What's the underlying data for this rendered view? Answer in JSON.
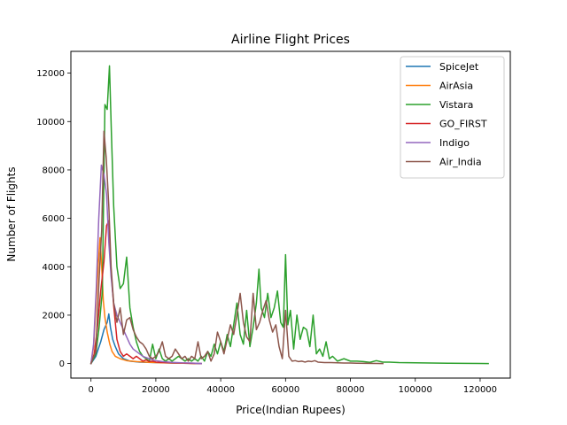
{
  "chart_data": {
    "type": "line",
    "title": "Airline Flight Prices",
    "xlabel": "Price(Indian Rupees)",
    "ylabel": "Number of Flights",
    "xlim": [
      -6200,
      129300
    ],
    "ylim": [
      -600,
      12900
    ],
    "xticks": [
      0,
      20000,
      40000,
      60000,
      80000,
      100000,
      120000
    ],
    "yticks": [
      0,
      2000,
      4000,
      6000,
      8000,
      10000,
      12000
    ],
    "legend_position": "upper right",
    "grid": false,
    "series": [
      {
        "name": "SpiceJet",
        "color": "#1f77b4",
        "points": [
          [
            0,
            0
          ],
          [
            1500,
            300
          ],
          [
            3000,
            900
          ],
          [
            4000,
            1400
          ],
          [
            5000,
            1700
          ],
          [
            5500,
            2050
          ],
          [
            6000,
            1500
          ],
          [
            6700,
            1000
          ],
          [
            7500,
            700
          ],
          [
            8500,
            400
          ],
          [
            10000,
            200
          ],
          [
            12000,
            100
          ],
          [
            15000,
            60
          ],
          [
            20000,
            40
          ],
          [
            25000,
            20
          ],
          [
            30000,
            10
          ],
          [
            34000,
            0
          ]
        ]
      },
      {
        "name": "AirAsia",
        "color": "#ff7f0e",
        "points": [
          [
            0,
            0
          ],
          [
            800,
            700
          ],
          [
            1600,
            2500
          ],
          [
            2300,
            4200
          ],
          [
            2800,
            5200
          ],
          [
            3300,
            4000
          ],
          [
            3800,
            2600
          ],
          [
            4300,
            1900
          ],
          [
            5000,
            1300
          ],
          [
            5800,
            800
          ],
          [
            6500,
            500
          ],
          [
            7500,
            300
          ],
          [
            9000,
            200
          ],
          [
            11000,
            120
          ],
          [
            14000,
            80
          ],
          [
            18000,
            50
          ],
          [
            22000,
            30
          ],
          [
            26000,
            20
          ],
          [
            30000,
            10
          ],
          [
            32000,
            0
          ]
        ]
      },
      {
        "name": "Vistara",
        "color": "#2ca02c",
        "points": [
          [
            0,
            0
          ],
          [
            1500,
            400
          ],
          [
            2500,
            1500
          ],
          [
            3500,
            3000
          ],
          [
            4300,
            10700
          ],
          [
            5000,
            10500
          ],
          [
            5700,
            12300
          ],
          [
            6300,
            9500
          ],
          [
            7000,
            6500
          ],
          [
            8000,
            4000
          ],
          [
            9000,
            3100
          ],
          [
            10000,
            3300
          ],
          [
            11000,
            4400
          ],
          [
            12000,
            2300
          ],
          [
            13000,
            1500
          ],
          [
            14000,
            900
          ],
          [
            15000,
            500
          ],
          [
            16000,
            300
          ],
          [
            17000,
            200
          ],
          [
            18000,
            100
          ],
          [
            19000,
            800
          ],
          [
            20000,
            200
          ],
          [
            21000,
            600
          ],
          [
            22000,
            200
          ],
          [
            23000,
            100
          ],
          [
            24000,
            200
          ],
          [
            25000,
            100
          ],
          [
            26000,
            200
          ],
          [
            27000,
            300
          ],
          [
            28000,
            200
          ],
          [
            29000,
            100
          ],
          [
            30000,
            200
          ],
          [
            31000,
            100
          ],
          [
            32000,
            200
          ],
          [
            33000,
            100
          ],
          [
            34000,
            300
          ],
          [
            35000,
            100
          ],
          [
            36000,
            500
          ],
          [
            37000,
            300
          ],
          [
            38000,
            800
          ],
          [
            39000,
            400
          ],
          [
            40000,
            900
          ],
          [
            41000,
            500
          ],
          [
            42000,
            1200
          ],
          [
            43000,
            700
          ],
          [
            44000,
            1600
          ],
          [
            45000,
            2500
          ],
          [
            46000,
            1200
          ],
          [
            47000,
            800
          ],
          [
            48000,
            2200
          ],
          [
            49000,
            700
          ],
          [
            50000,
            1500
          ],
          [
            51000,
            2500
          ],
          [
            51800,
            3900
          ],
          [
            52500,
            2300
          ],
          [
            53500,
            1900
          ],
          [
            54500,
            2900
          ],
          [
            55500,
            1900
          ],
          [
            56500,
            2300
          ],
          [
            57500,
            3000
          ],
          [
            58500,
            1700
          ],
          [
            59300,
            1500
          ],
          [
            60000,
            4500
          ],
          [
            60700,
            1600
          ],
          [
            61500,
            2200
          ],
          [
            62500,
            600
          ],
          [
            63500,
            2000
          ],
          [
            64500,
            1000
          ],
          [
            65500,
            1500
          ],
          [
            66500,
            1400
          ],
          [
            67500,
            700
          ],
          [
            68500,
            2000
          ],
          [
            69500,
            400
          ],
          [
            70500,
            600
          ],
          [
            71500,
            300
          ],
          [
            72500,
            900
          ],
          [
            73500,
            200
          ],
          [
            74500,
            300
          ],
          [
            76000,
            100
          ],
          [
            78000,
            200
          ],
          [
            80000,
            100
          ],
          [
            82000,
            100
          ],
          [
            84000,
            80
          ],
          [
            86000,
            50
          ],
          [
            88000,
            120
          ],
          [
            90000,
            60
          ],
          [
            92000,
            60
          ],
          [
            95000,
            40
          ],
          [
            100000,
            30
          ],
          [
            105000,
            20
          ],
          [
            110000,
            15
          ],
          [
            115000,
            10
          ],
          [
            120000,
            5
          ],
          [
            122500,
            0
          ]
        ]
      },
      {
        "name": "GO_FIRST",
        "color": "#d62728",
        "points": [
          [
            0,
            0
          ],
          [
            1000,
            400
          ],
          [
            2000,
            1500
          ],
          [
            3000,
            3000
          ],
          [
            4000,
            4200
          ],
          [
            4800,
            5700
          ],
          [
            5500,
            5900
          ],
          [
            6200,
            3800
          ],
          [
            7000,
            2400
          ],
          [
            8000,
            1000
          ],
          [
            9000,
            500
          ],
          [
            10000,
            300
          ],
          [
            11000,
            400
          ],
          [
            12000,
            300
          ],
          [
            13000,
            200
          ],
          [
            14000,
            300
          ],
          [
            15000,
            200
          ],
          [
            16000,
            100
          ],
          [
            17000,
            150
          ],
          [
            18000,
            80
          ],
          [
            19000,
            100
          ],
          [
            20000,
            60
          ],
          [
            22000,
            40
          ],
          [
            25000,
            30
          ],
          [
            28000,
            20
          ],
          [
            31000,
            10
          ],
          [
            34000,
            0
          ]
        ]
      },
      {
        "name": "Indigo",
        "color": "#9467bd",
        "points": [
          [
            0,
            0
          ],
          [
            800,
            800
          ],
          [
            1600,
            3000
          ],
          [
            2400,
            6000
          ],
          [
            3200,
            8200
          ],
          [
            4000,
            7800
          ],
          [
            4800,
            7000
          ],
          [
            5500,
            5000
          ],
          [
            6200,
            3600
          ],
          [
            7000,
            2500
          ],
          [
            8000,
            2000
          ],
          [
            9000,
            1700
          ],
          [
            10000,
            1400
          ],
          [
            11000,
            1100
          ],
          [
            12000,
            800
          ],
          [
            13000,
            600
          ],
          [
            14000,
            500
          ],
          [
            15000,
            400
          ],
          [
            16000,
            300
          ],
          [
            17000,
            250
          ],
          [
            18000,
            200
          ],
          [
            20000,
            120
          ],
          [
            22000,
            80
          ],
          [
            25000,
            50
          ],
          [
            28000,
            30
          ],
          [
            31000,
            20
          ],
          [
            34000,
            0
          ]
        ]
      },
      {
        "name": "Air_India",
        "color": "#8c564b",
        "points": [
          [
            0,
            0
          ],
          [
            1500,
            500
          ],
          [
            2500,
            3500
          ],
          [
            3300,
            5500
          ],
          [
            4000,
            9600
          ],
          [
            4700,
            8500
          ],
          [
            5500,
            6500
          ],
          [
            6200,
            4000
          ],
          [
            7000,
            2500
          ],
          [
            8000,
            1700
          ],
          [
            9000,
            2300
          ],
          [
            10000,
            1200
          ],
          [
            11000,
            1800
          ],
          [
            12000,
            1900
          ],
          [
            13000,
            1400
          ],
          [
            14000,
            1100
          ],
          [
            15000,
            900
          ],
          [
            16000,
            800
          ],
          [
            17000,
            600
          ],
          [
            18000,
            300
          ],
          [
            19000,
            200
          ],
          [
            20000,
            300
          ],
          [
            21000,
            500
          ],
          [
            22000,
            900
          ],
          [
            23000,
            300
          ],
          [
            24000,
            200
          ],
          [
            25000,
            300
          ],
          [
            26000,
            600
          ],
          [
            27000,
            400
          ],
          [
            28000,
            200
          ],
          [
            29000,
            300
          ],
          [
            30000,
            100
          ],
          [
            31000,
            300
          ],
          [
            32000,
            200
          ],
          [
            33000,
            900
          ],
          [
            34000,
            200
          ],
          [
            35000,
            300
          ],
          [
            36000,
            500
          ],
          [
            37000,
            100
          ],
          [
            38000,
            400
          ],
          [
            39000,
            1300
          ],
          [
            40000,
            900
          ],
          [
            41000,
            400
          ],
          [
            42000,
            1000
          ],
          [
            43000,
            1600
          ],
          [
            44000,
            1200
          ],
          [
            45000,
            2000
          ],
          [
            46000,
            2900
          ],
          [
            47000,
            1700
          ],
          [
            48000,
            1100
          ],
          [
            49000,
            900
          ],
          [
            50000,
            2900
          ],
          [
            51000,
            1400
          ],
          [
            52000,
            1700
          ],
          [
            53000,
            2200
          ],
          [
            54000,
            2600
          ],
          [
            55000,
            1800
          ],
          [
            56000,
            1300
          ],
          [
            57000,
            1600
          ],
          [
            58000,
            700
          ],
          [
            59000,
            200
          ],
          [
            60000,
            2200
          ],
          [
            61000,
            300
          ],
          [
            62000,
            100
          ],
          [
            63000,
            120
          ],
          [
            64000,
            80
          ],
          [
            65000,
            100
          ],
          [
            66000,
            60
          ],
          [
            67000,
            100
          ],
          [
            68000,
            80
          ],
          [
            69000,
            120
          ],
          [
            70000,
            60
          ],
          [
            72000,
            40
          ],
          [
            74000,
            40
          ],
          [
            76000,
            30
          ],
          [
            78000,
            20
          ],
          [
            80000,
            20
          ],
          [
            82000,
            15
          ],
          [
            85000,
            10
          ],
          [
            88000,
            5
          ],
          [
            90000,
            0
          ]
        ]
      }
    ]
  }
}
